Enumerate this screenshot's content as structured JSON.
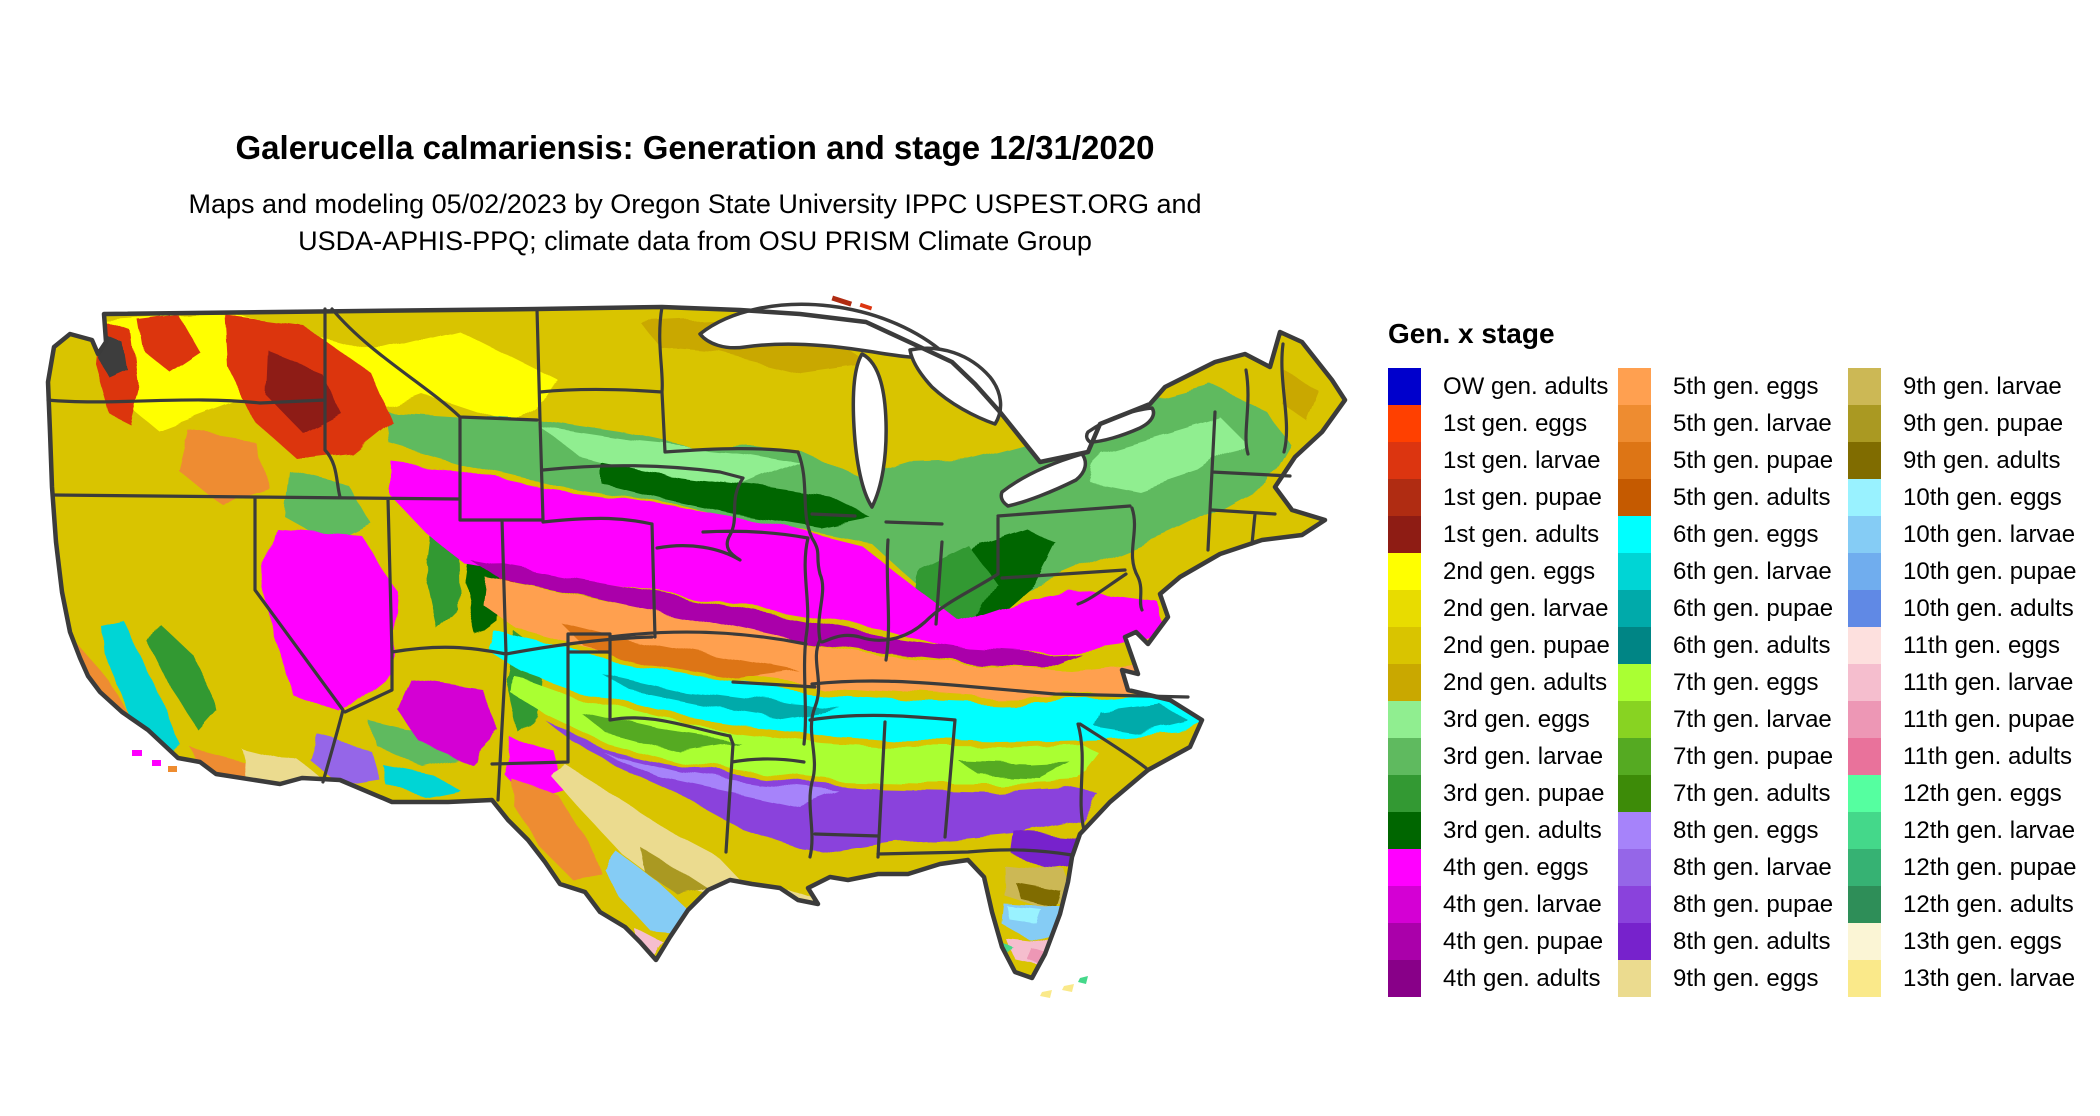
{
  "title": "Galerucella calmariensis: Generation and stage 12/31/2020",
  "subtitle": {
    "line1": "Maps and modeling 05/02/2023 by Oregon State University IPPC USPEST.ORG and",
    "line2": "USDA-APHIS-PPQ; climate data from OSU PRISM Climate Group"
  },
  "legend": {
    "title": "Gen. x stage",
    "rows_per_column": 17,
    "items": [
      {
        "label": "OW gen. adults",
        "color": "#0000CC"
      },
      {
        "label": "1st gen. eggs",
        "color": "#FF4000"
      },
      {
        "label": "1st gen. larvae",
        "color": "#DC3510"
      },
      {
        "label": "1st gen. pupae",
        "color": "#B02C12"
      },
      {
        "label": "1st gen. adults",
        "color": "#8E1C14"
      },
      {
        "label": "2nd gen. eggs",
        "color": "#FFFF00"
      },
      {
        "label": "2nd gen. larvae",
        "color": "#E8DC00"
      },
      {
        "label": "2nd gen. pupae",
        "color": "#D9C400"
      },
      {
        "label": "2nd gen. adults",
        "color": "#C9A800"
      },
      {
        "label": "3rd gen. eggs",
        "color": "#90EE90"
      },
      {
        "label": "3rd gen. larvae",
        "color": "#5FBA5F"
      },
      {
        "label": "3rd gen. pupae",
        "color": "#339933"
      },
      {
        "label": "3rd gen. adults",
        "color": "#006600"
      },
      {
        "label": "4th gen. eggs",
        "color": "#FF00FF"
      },
      {
        "label": "4th gen. larvae",
        "color": "#D400D4"
      },
      {
        "label": "4th gen. pupae",
        "color": "#AA00AA"
      },
      {
        "label": "4th gen. adults",
        "color": "#880088"
      },
      {
        "label": "5th gen. eggs",
        "color": "#FFA050"
      },
      {
        "label": "5th gen. larvae",
        "color": "#EE8C30"
      },
      {
        "label": "5th gen. pupae",
        "color": "#DD7515"
      },
      {
        "label": "5th gen. adults",
        "color": "#C55A00"
      },
      {
        "label": "6th gen. eggs",
        "color": "#00FFFF"
      },
      {
        "label": "6th gen. larvae",
        "color": "#00D5D5"
      },
      {
        "label": "6th gen. pupae",
        "color": "#00AAAA"
      },
      {
        "label": "6th gen. adults",
        "color": "#008585"
      },
      {
        "label": "7th gen. eggs",
        "color": "#AAFF33"
      },
      {
        "label": "7th gen. larvae",
        "color": "#88D322"
      },
      {
        "label": "7th gen. pupae",
        "color": "#55AA22"
      },
      {
        "label": "7th gen. adults",
        "color": "#3D8B08"
      },
      {
        "label": "8th gen. eggs",
        "color": "#A683FA"
      },
      {
        "label": "8th gen. larvae",
        "color": "#9566E8"
      },
      {
        "label": "8th gen. pupae",
        "color": "#8A42DC"
      },
      {
        "label": "8th gen. adults",
        "color": "#7722CC"
      },
      {
        "label": "9th gen. eggs",
        "color": "#EBDB8F"
      },
      {
        "label": "9th gen. larvae",
        "color": "#CCB855"
      },
      {
        "label": "9th gen. pupae",
        "color": "#AA9922"
      },
      {
        "label": "9th gen. adults",
        "color": "#806C00"
      },
      {
        "label": "10th gen. eggs",
        "color": "#99F2FF"
      },
      {
        "label": "10th gen. larvae",
        "color": "#85CCF5"
      },
      {
        "label": "10th gen. pupae",
        "color": "#70ADEE"
      },
      {
        "label": "10th gen. adults",
        "color": "#6089E5"
      },
      {
        "label": "11th gen. eggs",
        "color": "#FDE0DE"
      },
      {
        "label": "11th gen. larvae",
        "color": "#F5BECE"
      },
      {
        "label": "11th gen. pupae",
        "color": "#ED97B5"
      },
      {
        "label": "11th gen. adults",
        "color": "#E9729B"
      },
      {
        "label": "12th gen. eggs",
        "color": "#55FFA0"
      },
      {
        "label": "12th gen. larvae",
        "color": "#44D88A"
      },
      {
        "label": "12th gen. pupae",
        "color": "#36B273"
      },
      {
        "label": "12th gen. adults",
        "color": "#2E8E58"
      },
      {
        "label": "13th gen. eggs",
        "color": "#FBF5D5"
      },
      {
        "label": "13th gen. larvae",
        "color": "#FAE98A"
      }
    ]
  },
  "map": {
    "border_color": "#3B3B3B",
    "water_color": "#FFFFFF"
  }
}
